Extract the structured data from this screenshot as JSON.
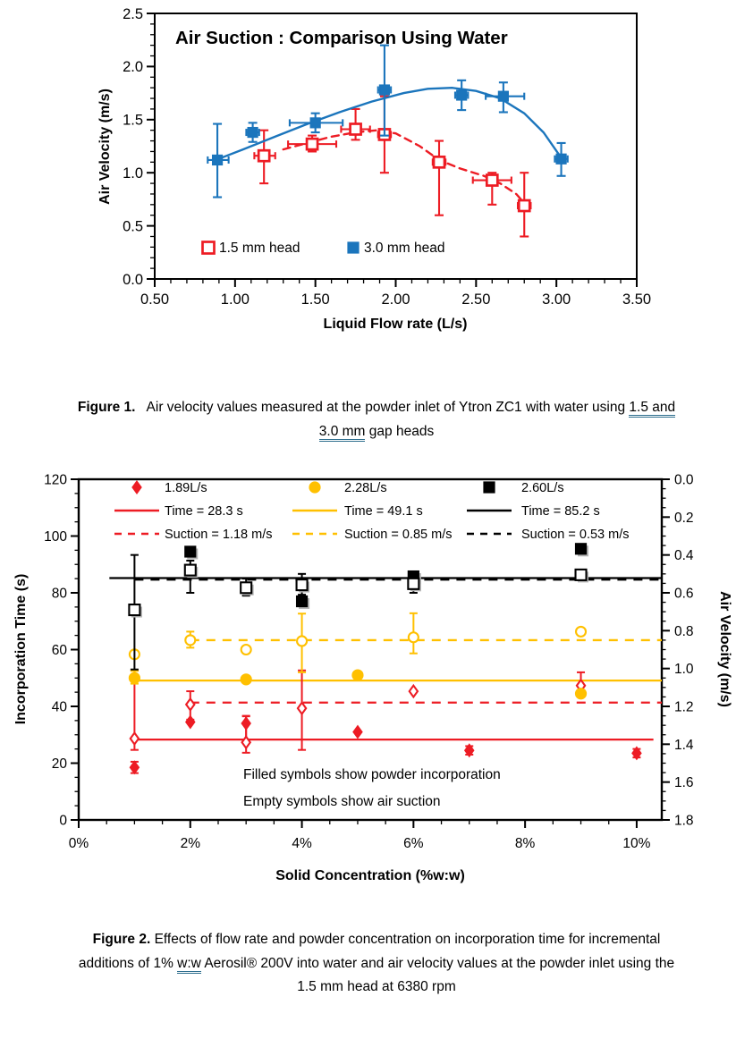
{
  "page": {
    "background": "#ffffff",
    "text_color": "#000000",
    "underline_color": "#2e6e8e"
  },
  "caption1": {
    "lines": [
      [
        {
          "text": "Figure 1.",
          "bold": true
        },
        {
          "text": "   Air velocity values measured at the powder inlet of Ytron ZC1 with water using ",
          "bold": false
        },
        {
          "text": "1.5 and",
          "underline": true
        }
      ],
      [
        {
          "text": "3.0 mm",
          "underline": true
        },
        {
          "text": " gap heads",
          "bold": false
        }
      ]
    ]
  },
  "caption2": {
    "lines": [
      [
        {
          "text": "Figure 2.",
          "bold": true
        },
        {
          "text": " Effects of flow rate and powder concentration on incorporation time for incremental",
          "bold": false
        }
      ],
      [
        {
          "text": "additions of 1% ",
          "bold": false
        },
        {
          "text": "w:w",
          "underline": true
        },
        {
          "text": " Aerosil® 200V into water and air velocity values at the powder inlet using the",
          "bold": false
        }
      ],
      [
        {
          "text": "1.5 mm head at 6380 rpm",
          "bold": false
        }
      ]
    ]
  },
  "chart_data": [
    {
      "id": "figure1",
      "type": "scatter",
      "title": "Air Suction : Comparison Using Water",
      "xlabel": "Liquid Flow rate (L/s)",
      "ylabel": "Air Velocity (m/s)",
      "xlim": [
        0.5,
        3.5
      ],
      "ylim": [
        0.0,
        2.5
      ],
      "x_minor_step": 0.1,
      "y_minor_step": 0.1,
      "grid": false,
      "legend_position": "inside-bottom-left",
      "x_ticks": [
        {
          "v": 0.5,
          "label": "0.50"
        },
        {
          "v": 1.0,
          "label": "1.00"
        },
        {
          "v": 1.5,
          "label": "1.50"
        },
        {
          "v": 2.0,
          "label": "2.00"
        },
        {
          "v": 2.5,
          "label": "2.50"
        },
        {
          "v": 3.0,
          "label": "3.00"
        },
        {
          "v": 3.5,
          "label": "3.50"
        }
      ],
      "y_ticks": [
        {
          "v": 0.0,
          "label": "0.0"
        },
        {
          "v": 0.5,
          "label": "0.5"
        },
        {
          "v": 1.0,
          "label": "1.0"
        },
        {
          "v": 1.5,
          "label": "1.5"
        },
        {
          "v": 2.0,
          "label": "2.0"
        },
        {
          "v": 2.5,
          "label": "2.5"
        }
      ],
      "series": [
        {
          "name": "1.5 mm head",
          "color": "#ed1c24",
          "marker": "square",
          "filled": false,
          "line_style": "dashed",
          "points": [
            {
              "x": 1.18,
              "y": 1.16,
              "ylo": 0.9,
              "yhi": 1.4,
              "xlo": 1.12,
              "xhi": 1.25
            },
            {
              "x": 1.48,
              "y": 1.27,
              "ylo": 1.2,
              "yhi": 1.35,
              "xlo": 1.33,
              "xhi": 1.63
            },
            {
              "x": 1.75,
              "y": 1.41,
              "ylo": 1.31,
              "yhi": 1.6,
              "xlo": 1.66,
              "xhi": 1.84
            },
            {
              "x": 1.93,
              "y": 1.36,
              "ylo": 1.0,
              "yhi": 1.72,
              "xlo": 1.89,
              "xhi": 1.97
            },
            {
              "x": 2.27,
              "y": 1.1,
              "ylo": 0.6,
              "yhi": 1.3,
              "xlo": 2.23,
              "xhi": 2.31
            },
            {
              "x": 2.6,
              "y": 0.93,
              "ylo": 0.7,
              "yhi": 1.0,
              "xlo": 2.48,
              "xhi": 2.72
            },
            {
              "x": 2.8,
              "y": 0.69,
              "ylo": 0.4,
              "yhi": 1.0,
              "xlo": 2.76,
              "xhi": 2.84
            }
          ],
          "trend": [
            [
              1.3,
              1.22
            ],
            [
              1.45,
              1.28
            ],
            [
              1.6,
              1.34
            ],
            [
              1.75,
              1.38
            ],
            [
              1.88,
              1.4
            ],
            [
              2.0,
              1.37
            ],
            [
              2.15,
              1.25
            ],
            [
              2.27,
              1.12
            ],
            [
              2.4,
              1.04
            ],
            [
              2.55,
              0.97
            ],
            [
              2.65,
              0.9
            ],
            [
              2.75,
              0.8
            ],
            [
              2.82,
              0.68
            ]
          ]
        },
        {
          "name": "3.0 mm head",
          "color": "#1b75bc",
          "marker": "square",
          "filled": true,
          "line_style": "solid",
          "points": [
            {
              "x": 0.89,
              "y": 1.12,
              "ylo": 0.77,
              "yhi": 1.46,
              "xlo": 0.83,
              "xhi": 0.96
            },
            {
              "x": 1.11,
              "y": 1.38,
              "ylo": 1.29,
              "yhi": 1.47,
              "xlo": 1.07,
              "xhi": 1.15
            },
            {
              "x": 1.5,
              "y": 1.47,
              "ylo": 1.38,
              "yhi": 1.56,
              "xlo": 1.34,
              "xhi": 1.67
            },
            {
              "x": 1.93,
              "y": 1.78,
              "ylo": 1.35,
              "yhi": 2.2,
              "xlo": 1.89,
              "xhi": 1.97
            },
            {
              "x": 2.41,
              "y": 1.73,
              "ylo": 1.59,
              "yhi": 1.87,
              "xlo": 2.37,
              "xhi": 2.45
            },
            {
              "x": 2.67,
              "y": 1.72,
              "ylo": 1.57,
              "yhi": 1.85,
              "xlo": 2.56,
              "xhi": 2.8
            },
            {
              "x": 3.03,
              "y": 1.13,
              "ylo": 0.97,
              "yhi": 1.28,
              "xlo": 2.99,
              "xhi": 3.07
            }
          ],
          "trend": [
            [
              0.88,
              1.12
            ],
            [
              1.05,
              1.22
            ],
            [
              1.25,
              1.34
            ],
            [
              1.45,
              1.46
            ],
            [
              1.65,
              1.57
            ],
            [
              1.85,
              1.67
            ],
            [
              2.05,
              1.75
            ],
            [
              2.2,
              1.79
            ],
            [
              2.35,
              1.8
            ],
            [
              2.5,
              1.77
            ],
            [
              2.65,
              1.7
            ],
            [
              2.8,
              1.56
            ],
            [
              2.92,
              1.38
            ],
            [
              3.03,
              1.14
            ]
          ]
        }
      ]
    },
    {
      "id": "figure2",
      "type": "scatter",
      "xlabel": "Solid Concentration (%w:w)",
      "ylabel_left": "Incorporation Time (s)",
      "ylabel_right": "Air Velocity (m/s)",
      "xlim": [
        0,
        10.45
      ],
      "ylim_left": [
        0,
        120
      ],
      "ylim_right": [
        0.0,
        1.8
      ],
      "right_axis_inverted": true,
      "x_minor_step": 0.5,
      "y_left_minor_step": 5,
      "y_right_minor_step": 0.05,
      "grid": false,
      "x_ticks": [
        {
          "v": 0,
          "label": "0%"
        },
        {
          "v": 2,
          "label": "2%"
        },
        {
          "v": 4,
          "label": "4%"
        },
        {
          "v": 6,
          "label": "6%"
        },
        {
          "v": 8,
          "label": "8%"
        },
        {
          "v": 10,
          "label": "10%"
        }
      ],
      "y_ticks_left": [
        {
          "v": 0,
          "label": "0"
        },
        {
          "v": 20,
          "label": "20"
        },
        {
          "v": 40,
          "label": "40"
        },
        {
          "v": 60,
          "label": "60"
        },
        {
          "v": 80,
          "label": "80"
        },
        {
          "v": 100,
          "label": "100"
        },
        {
          "v": 120,
          "label": "120"
        }
      ],
      "y_ticks_right": [
        {
          "v": 0.0,
          "label": "0.0"
        },
        {
          "v": 0.2,
          "label": "0.2"
        },
        {
          "v": 0.4,
          "label": "0.4"
        },
        {
          "v": 0.6,
          "label": "0.6"
        },
        {
          "v": 0.8,
          "label": "0.8"
        },
        {
          "v": 1.0,
          "label": "1.0"
        },
        {
          "v": 1.2,
          "label": "1.2"
        },
        {
          "v": 1.4,
          "label": "1.4"
        },
        {
          "v": 1.6,
          "label": "1.6"
        },
        {
          "v": 1.8,
          "label": "1.8"
        }
      ],
      "flow_series": [
        {
          "name": "1.89L/s",
          "color": "#ed1c24",
          "marker": "diamond",
          "time_points": [
            {
              "x": 1,
              "y": 18.5,
              "ylo": 16.5,
              "yhi": 20.5
            },
            {
              "x": 2,
              "y": 34.5,
              "ylo": 34.5,
              "yhi": 34.5
            },
            {
              "x": 3,
              "y": 34.0,
              "ylo": 28.0,
              "yhi": 36.5
            },
            {
              "x": 5,
              "y": 31.0,
              "ylo": 31.0,
              "yhi": 31.0
            },
            {
              "x": 7,
              "y": 24.5,
              "ylo": 23.0,
              "yhi": 26.0
            },
            {
              "x": 10,
              "y": 23.5,
              "ylo": 22.0,
              "yhi": 25.0
            }
          ],
          "suction_points": [
            {
              "x": 1,
              "v": 1.37,
              "vlo": 1.01,
              "vhi": 1.43
            },
            {
              "x": 2,
              "v": 1.19,
              "vlo": 1.12,
              "vhi": 1.27
            },
            {
              "x": 3,
              "v": 1.39,
              "vlo": 1.25,
              "vhi": 1.445
            },
            {
              "x": 4,
              "v": 1.21,
              "vlo": 1.01,
              "vhi": 1.43
            },
            {
              "x": 6,
              "v": 1.12,
              "vlo": 1.12,
              "vhi": 1.12
            },
            {
              "x": 9,
              "v": 1.09,
              "vlo": 1.02,
              "vhi": 1.13
            }
          ],
          "time_avg": {
            "label": "Time = 28.3 s",
            "value": 28.3,
            "x1": 1.0,
            "x2": 10.3
          },
          "suction_avg": {
            "label": "Suction = 1.18 m/s",
            "value": 1.18,
            "x1": 2.0,
            "x2": 10.45
          }
        },
        {
          "name": "2.28L/s",
          "color": "#ffc000",
          "marker": "circle",
          "time_points": [
            {
              "x": 1,
              "y": 50.0,
              "ylo": 48.0,
              "yhi": 52.5
            },
            {
              "x": 3,
              "y": 49.5,
              "ylo": 49.5,
              "yhi": 49.5
            },
            {
              "x": 5,
              "y": 51.0,
              "ylo": 51.0,
              "yhi": 51.0
            },
            {
              "x": 9,
              "y": 44.5,
              "ylo": 44.5,
              "yhi": 44.5
            }
          ],
          "suction_points": [
            {
              "x": 1,
              "v": 0.925,
              "vlo": 0.925,
              "vhi": 0.925
            },
            {
              "x": 2,
              "v": 0.85,
              "vlo": 0.805,
              "vhi": 0.89
            },
            {
              "x": 3,
              "v": 0.9,
              "vlo": 0.9,
              "vhi": 0.9
            },
            {
              "x": 4,
              "v": 0.855,
              "vlo": 0.71,
              "vhi": 1.02
            },
            {
              "x": 6,
              "v": 0.835,
              "vlo": 0.708,
              "vhi": 0.92
            },
            {
              "x": 9,
              "v": 0.805,
              "vlo": 0.805,
              "vhi": 0.805
            }
          ],
          "time_avg": {
            "label": "Time = 49.1 s",
            "value": 49.1,
            "x1": 1.0,
            "x2": 10.45
          },
          "suction_avg": {
            "label": "Suction = 0.85 m/s",
            "value": 0.85,
            "x1": 2.0,
            "x2": 10.45
          }
        },
        {
          "name": "2.60L/s",
          "color": "#000000",
          "marker": "square",
          "time_points": [
            {
              "x": 2,
              "y": 94.5,
              "ylo": 94.5,
              "yhi": 94.5
            },
            {
              "x": 4,
              "y": 77.0,
              "ylo": 77.0,
              "yhi": 77.0
            },
            {
              "x": 6,
              "y": 85.8,
              "ylo": 85.8,
              "yhi": 85.8
            },
            {
              "x": 9,
              "y": 95.5,
              "ylo": 95.5,
              "yhi": 95.5
            }
          ],
          "suction_points": [
            {
              "x": 1,
              "v": 0.69,
              "vlo": 0.4,
              "vhi": 1.005
            },
            {
              "x": 2,
              "v": 0.48,
              "vlo": 0.43,
              "vhi": 0.6
            },
            {
              "x": 3,
              "v": 0.573,
              "vlo": 0.525,
              "vhi": 0.615
            },
            {
              "x": 4,
              "v": 0.558,
              "vlo": 0.5,
              "vhi": 0.61
            },
            {
              "x": 6,
              "v": 0.552,
              "vlo": 0.51,
              "vhi": 0.6
            },
            {
              "x": 9,
              "v": 0.505,
              "vlo": 0.505,
              "vhi": 0.505
            }
          ],
          "time_avg": {
            "label": "Time = 85.2 s",
            "value": 85.2,
            "x1": 0.55,
            "x2": 10.45
          },
          "suction_avg": {
            "label": "Suction = 0.53 m/s",
            "value": 0.53,
            "x1": 1.0,
            "x2": 10.45
          }
        }
      ],
      "annotations": [
        "Filled symbols show powder incorporation",
        "Empty symbols show air suction"
      ]
    }
  ]
}
